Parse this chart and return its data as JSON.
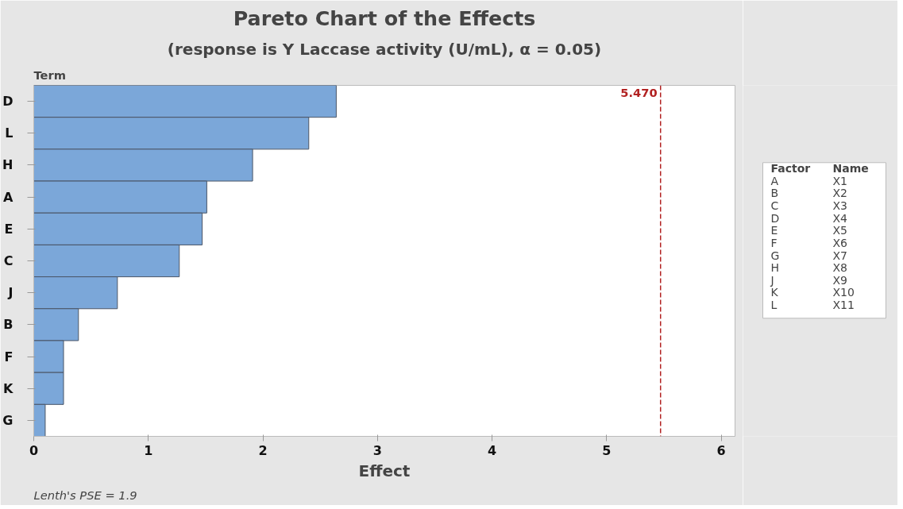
{
  "chart_data": {
    "type": "bar",
    "orientation": "horizontal",
    "title": "Pareto Chart of the Effects",
    "subtitle": "(response is Y Laccase activity (U/mL), α = 0.05)",
    "xlabel": "Effect",
    "ylabel": "Term",
    "categories": [
      "D",
      "L",
      "H",
      "A",
      "E",
      "C",
      "J",
      "B",
      "F",
      "K",
      "G"
    ],
    "values": [
      2.64,
      2.4,
      1.91,
      1.51,
      1.47,
      1.27,
      0.73,
      0.39,
      0.26,
      0.26,
      0.1
    ],
    "color": "#7ba7d9",
    "xlim": [
      0,
      6.12
    ],
    "xticks": [
      0,
      1,
      2,
      3,
      4,
      5,
      6
    ],
    "grid": false,
    "ref_lines": [
      {
        "axis": "x",
        "value": 5.47,
        "label": "5.470",
        "color": "#b22222",
        "line_style": "dashed"
      }
    ],
    "annotations": [
      "Lenth's PSE = 1.9",
      "Factor",
      "Name",
      "A",
      "X1",
      "B",
      "X2",
      "C",
      "X3",
      "D",
      "X4",
      "E",
      "X5",
      "F",
      "X6",
      "G",
      "X7",
      "H",
      "X8",
      "J",
      "X9",
      "K",
      "X10",
      "L",
      "X11"
    ]
  }
}
